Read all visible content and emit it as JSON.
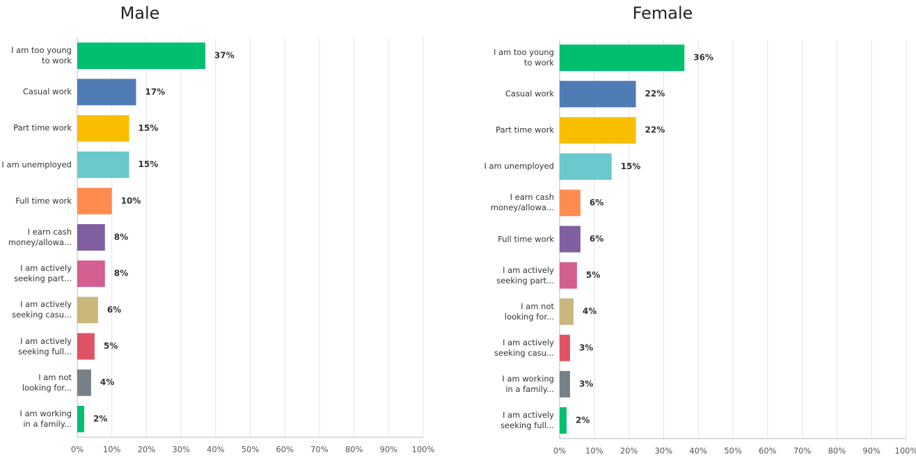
{
  "chart_data": [
    {
      "type": "bar",
      "orientation": "horizontal",
      "title": "Male",
      "categories": [
        "I am too young\nto work",
        "Casual work",
        "Part time work",
        "I am unemployed",
        "Full time work",
        "I earn cash\nmoney/allowa...",
        "I am actively\nseeking part...",
        "I am actively\nseeking casu...",
        "I am actively\nseeking full...",
        "I am not\nlooking for...",
        "I am working\nin a family..."
      ],
      "values": [
        37,
        17,
        15,
        15,
        10,
        8,
        8,
        6,
        5,
        4,
        2
      ],
      "value_labels": [
        "37%",
        "17%",
        "15%",
        "15%",
        "10%",
        "8%",
        "8%",
        "6%",
        "5%",
        "4%",
        "2%"
      ],
      "colors": [
        "#00bf6f",
        "#507cb6",
        "#f9be00",
        "#6bc8cd",
        "#ff8b4f",
        "#7f5fa0",
        "#d25f90",
        "#c9b77c",
        "#e05263",
        "#768086",
        "#00bf6f"
      ],
      "xlim": [
        0,
        100
      ],
      "xticks": [
        {
          "value": 0,
          "label": "0%"
        },
        {
          "value": 10,
          "label": "10%"
        },
        {
          "value": 20,
          "label": "20%"
        },
        {
          "value": 30,
          "label": "30%"
        },
        {
          "value": 40,
          "label": "40%"
        },
        {
          "value": 50,
          "label": "50%"
        },
        {
          "value": 60,
          "label": "60%"
        },
        {
          "value": 70,
          "label": "70%"
        },
        {
          "value": 80,
          "label": "80%"
        },
        {
          "value": 90,
          "label": "90%"
        },
        {
          "value": 100,
          "label": "100%"
        }
      ],
      "grid": true
    },
    {
      "type": "bar",
      "orientation": "horizontal",
      "title": "Female",
      "categories": [
        "I am too young\nto work",
        "Casual work",
        "Part time work",
        "I am unemployed",
        "I earn cash\nmoney/allowa...",
        "Full time work",
        "I am actively\nseeking part...",
        "I am not\nlooking for...",
        "I am actively\nseeking casu...",
        "I am working\nin a family...",
        "I am actively\nseeking full..."
      ],
      "values": [
        36,
        22,
        22,
        15,
        6,
        6,
        5,
        4,
        3,
        3,
        2
      ],
      "value_labels": [
        "36%",
        "22%",
        "22%",
        "15%",
        "6%",
        "6%",
        "5%",
        "4%",
        "3%",
        "3%",
        "2%"
      ],
      "colors": [
        "#00bf6f",
        "#507cb6",
        "#f9be00",
        "#6bc8cd",
        "#ff8b4f",
        "#7f5fa0",
        "#d25f90",
        "#c9b77c",
        "#e05263",
        "#768086",
        "#00bf6f"
      ],
      "xlim": [
        0,
        100
      ],
      "xticks": [
        {
          "value": 0,
          "label": "0%"
        },
        {
          "value": 10,
          "label": "10%"
        },
        {
          "value": 20,
          "label": "20%"
        },
        {
          "value": 30,
          "label": "30%"
        },
        {
          "value": 40,
          "label": "40%"
        },
        {
          "value": 50,
          "label": "50%"
        },
        {
          "value": 60,
          "label": "60%"
        },
        {
          "value": 70,
          "label": "70%"
        },
        {
          "value": 80,
          "label": "80%"
        },
        {
          "value": 90,
          "label": "90%"
        },
        {
          "value": 100,
          "label": "100%"
        }
      ],
      "grid": true
    }
  ]
}
